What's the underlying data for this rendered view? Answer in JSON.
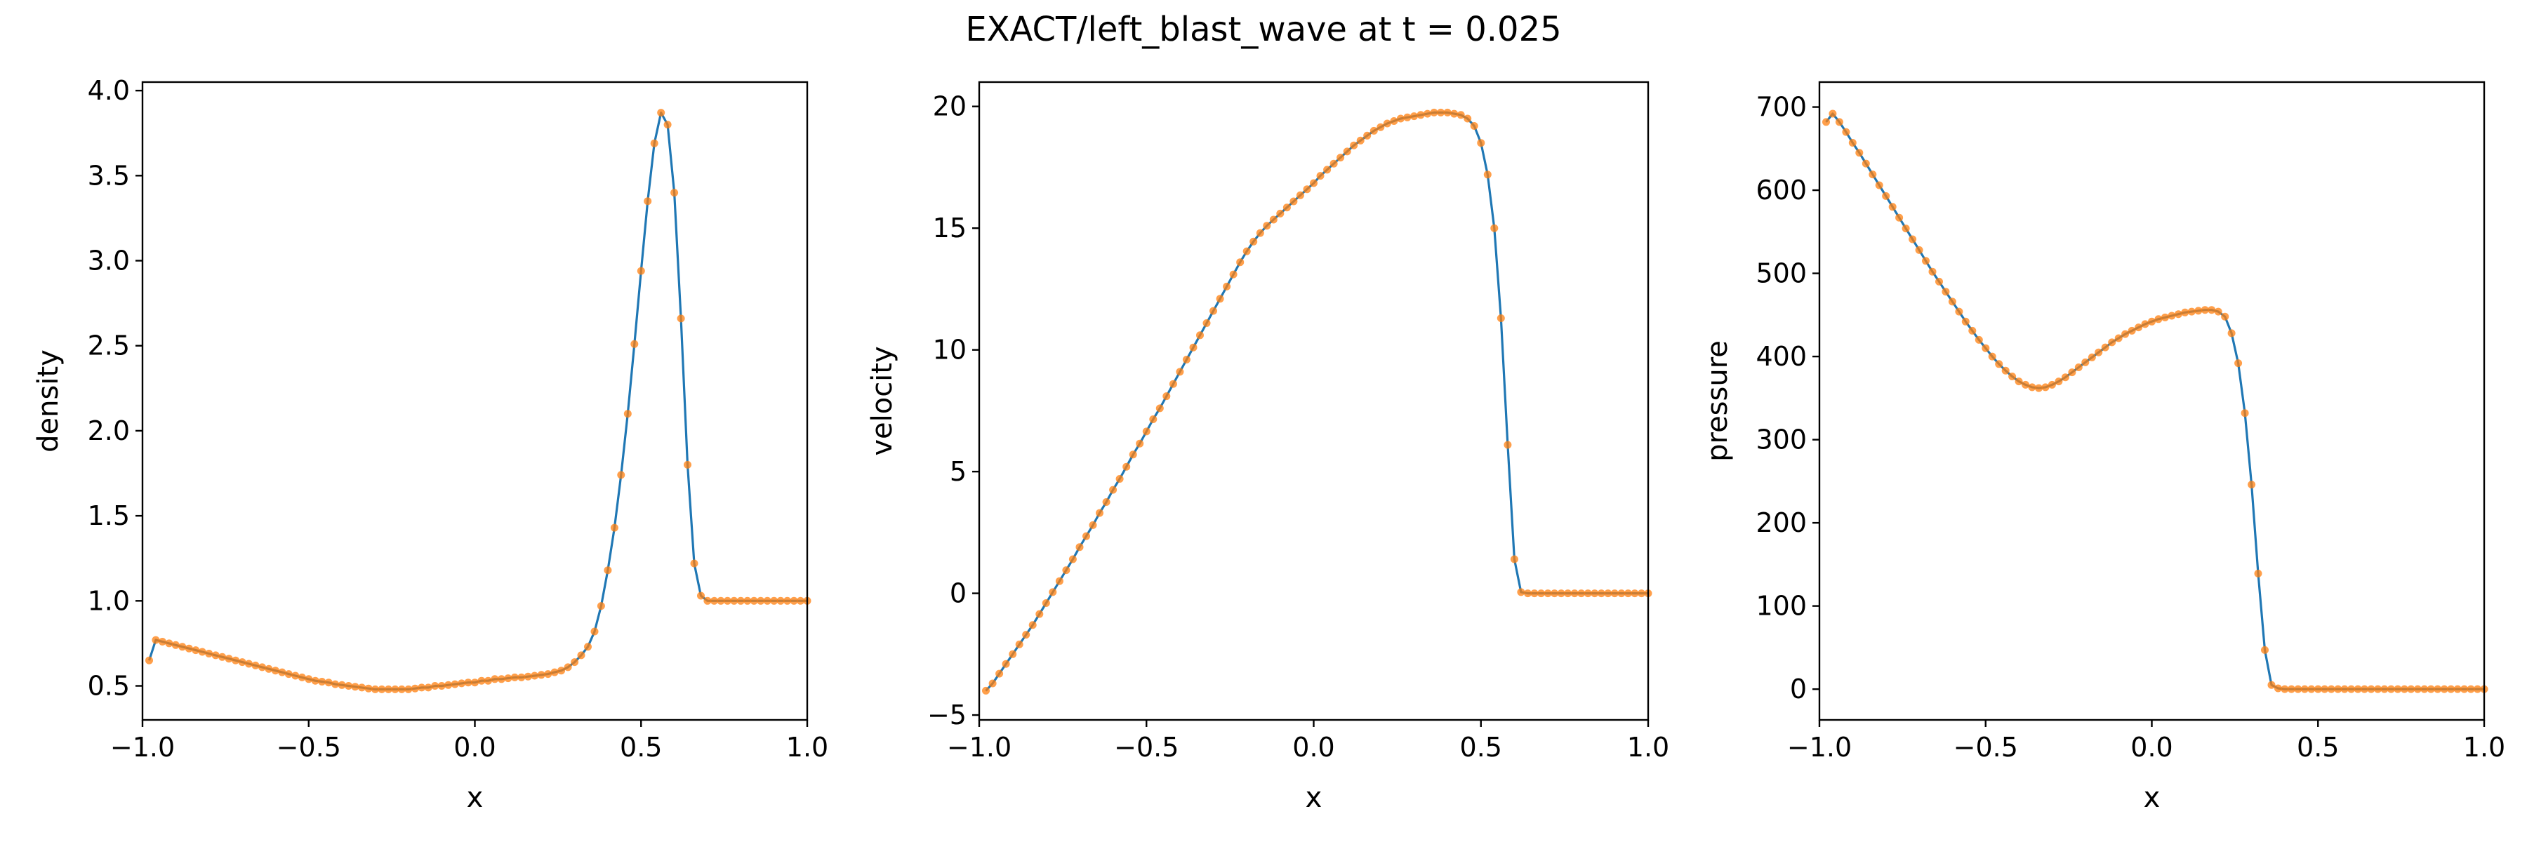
{
  "title": "EXACT/left_blast_wave at t = 0.025",
  "colors": {
    "line": "#1f77b4",
    "markers": "#ff7f0e"
  },
  "chart_data": [
    {
      "type": "line",
      "xlabel": "x",
      "ylabel": "density",
      "xlim": [
        -1.0,
        1.0
      ],
      "ylim": [
        0.3,
        4.05
      ],
      "xticks": [
        -1.0,
        -0.5,
        0.0,
        0.5,
        1.0
      ],
      "xtick_labels": [
        "−1.0",
        "−0.5",
        "0.0",
        "0.5",
        "1.0"
      ],
      "yticks": [
        0.5,
        1.0,
        1.5,
        2.0,
        2.5,
        3.0,
        3.5,
        4.0
      ],
      "ytick_labels": [
        "0.5",
        "1.0",
        "1.5",
        "2.0",
        "2.5",
        "3.0",
        "3.5",
        "4.0"
      ],
      "x": [
        -0.98,
        -0.96,
        -0.94,
        -0.92,
        -0.9,
        -0.88,
        -0.86,
        -0.84,
        -0.82,
        -0.8,
        -0.78,
        -0.76,
        -0.74,
        -0.72,
        -0.7,
        -0.68,
        -0.66,
        -0.64,
        -0.62,
        -0.6,
        -0.58,
        -0.56,
        -0.54,
        -0.52,
        -0.5,
        -0.48,
        -0.46,
        -0.44,
        -0.42,
        -0.4,
        -0.38,
        -0.36,
        -0.34,
        -0.32,
        -0.3,
        -0.28,
        -0.26,
        -0.24,
        -0.22,
        -0.2,
        -0.18,
        -0.16,
        -0.14,
        -0.12,
        -0.1,
        -0.08,
        -0.06,
        -0.04,
        -0.02,
        0.0,
        0.02,
        0.04,
        0.06,
        0.08,
        0.1,
        0.12,
        0.14,
        0.16,
        0.18,
        0.2,
        0.22,
        0.24,
        0.26,
        0.28,
        0.3,
        0.32,
        0.34,
        0.36,
        0.38,
        0.4,
        0.42,
        0.44,
        0.46,
        0.48,
        0.5,
        0.52,
        0.54,
        0.56,
        0.58,
        0.6,
        0.62,
        0.64,
        0.66,
        0.68,
        0.7,
        0.72,
        0.74,
        0.76,
        0.78,
        0.8,
        0.82,
        0.84,
        0.86,
        0.88,
        0.9,
        0.92,
        0.94,
        0.96,
        0.98,
        1.0
      ],
      "y": [
        0.65,
        0.77,
        0.76,
        0.75,
        0.74,
        0.73,
        0.72,
        0.71,
        0.7,
        0.69,
        0.68,
        0.67,
        0.66,
        0.65,
        0.64,
        0.63,
        0.62,
        0.61,
        0.6,
        0.59,
        0.58,
        0.57,
        0.56,
        0.55,
        0.54,
        0.53,
        0.525,
        0.52,
        0.51,
        0.505,
        0.5,
        0.495,
        0.49,
        0.485,
        0.48,
        0.48,
        0.48,
        0.48,
        0.48,
        0.48,
        0.485,
        0.49,
        0.49,
        0.5,
        0.5,
        0.505,
        0.51,
        0.515,
        0.52,
        0.52,
        0.53,
        0.53,
        0.54,
        0.54,
        0.545,
        0.55,
        0.55,
        0.555,
        0.56,
        0.565,
        0.57,
        0.58,
        0.59,
        0.61,
        0.64,
        0.68,
        0.73,
        0.82,
        0.97,
        1.18,
        1.43,
        1.74,
        2.1,
        2.51,
        2.94,
        3.35,
        3.69,
        3.87,
        3.8,
        3.4,
        2.66,
        1.8,
        1.22,
        1.03,
        1.0,
        1.0,
        1.0,
        1.0,
        1.0,
        1.0,
        1.0,
        1.0,
        1.0,
        1.0,
        1.0,
        1.0,
        1.0,
        1.0,
        1.0,
        1.0
      ]
    },
    {
      "type": "line",
      "xlabel": "x",
      "ylabel": "velocity",
      "xlim": [
        -1.0,
        1.0
      ],
      "ylim": [
        -5.2,
        21.0
      ],
      "xticks": [
        -1.0,
        -0.5,
        0.0,
        0.5,
        1.0
      ],
      "xtick_labels": [
        "−1.0",
        "−0.5",
        "0.0",
        "0.5",
        "1.0"
      ],
      "yticks": [
        -5,
        0,
        5,
        10,
        15,
        20
      ],
      "ytick_labels": [
        "−5",
        "0",
        "5",
        "10",
        "15",
        "20"
      ],
      "x": [
        -0.98,
        -0.96,
        -0.94,
        -0.92,
        -0.9,
        -0.88,
        -0.86,
        -0.84,
        -0.82,
        -0.8,
        -0.78,
        -0.76,
        -0.74,
        -0.72,
        -0.7,
        -0.68,
        -0.66,
        -0.64,
        -0.62,
        -0.6,
        -0.58,
        -0.56,
        -0.54,
        -0.52,
        -0.5,
        -0.48,
        -0.46,
        -0.44,
        -0.42,
        -0.4,
        -0.38,
        -0.36,
        -0.34,
        -0.32,
        -0.3,
        -0.28,
        -0.26,
        -0.24,
        -0.22,
        -0.2,
        -0.18,
        -0.16,
        -0.14,
        -0.12,
        -0.1,
        -0.08,
        -0.06,
        -0.04,
        -0.02,
        0.0,
        0.02,
        0.04,
        0.06,
        0.08,
        0.1,
        0.12,
        0.14,
        0.16,
        0.18,
        0.2,
        0.22,
        0.24,
        0.26,
        0.28,
        0.3,
        0.32,
        0.34,
        0.36,
        0.38,
        0.4,
        0.42,
        0.44,
        0.46,
        0.48,
        0.5,
        0.52,
        0.54,
        0.56,
        0.58,
        0.6,
        0.62,
        0.64,
        0.66,
        0.68,
        0.7,
        0.72,
        0.74,
        0.76,
        0.78,
        0.8,
        0.82,
        0.84,
        0.86,
        0.88,
        0.9,
        0.92,
        0.94,
        0.96,
        0.98,
        1.0
      ],
      "y": [
        -4.0,
        -3.7,
        -3.3,
        -2.9,
        -2.5,
        -2.1,
        -1.7,
        -1.3,
        -0.85,
        -0.4,
        0.05,
        0.5,
        0.95,
        1.4,
        1.9,
        2.35,
        2.8,
        3.3,
        3.75,
        4.25,
        4.7,
        5.2,
        5.7,
        6.15,
        6.65,
        7.15,
        7.6,
        8.1,
        8.6,
        9.1,
        9.6,
        10.1,
        10.6,
        11.1,
        11.6,
        12.1,
        12.6,
        13.1,
        13.6,
        14.05,
        14.45,
        14.8,
        15.1,
        15.35,
        15.6,
        15.85,
        16.1,
        16.35,
        16.6,
        16.85,
        17.15,
        17.4,
        17.65,
        17.9,
        18.15,
        18.4,
        18.6,
        18.8,
        19.0,
        19.15,
        19.3,
        19.4,
        19.5,
        19.55,
        19.6,
        19.65,
        19.7,
        19.75,
        19.75,
        19.75,
        19.7,
        19.65,
        19.5,
        19.2,
        18.5,
        17.2,
        15.0,
        11.3,
        6.1,
        1.4,
        0.05,
        0.0,
        0.0,
        0.0,
        0.0,
        0.0,
        0.0,
        0.0,
        0.0,
        0.0,
        0.0,
        0.0,
        0.0,
        0.0,
        0.0,
        0.0,
        0.0,
        0.0,
        0.0,
        0.0
      ]
    },
    {
      "type": "line",
      "xlabel": "x",
      "ylabel": "pressure",
      "xlim": [
        -1.0,
        1.0
      ],
      "ylim": [
        -37,
        730
      ],
      "xticks": [
        -1.0,
        -0.5,
        0.0,
        0.5,
        1.0
      ],
      "xtick_labels": [
        "−1.0",
        "−0.5",
        "0.0",
        "0.5",
        "1.0"
      ],
      "yticks": [
        0,
        100,
        200,
        300,
        400,
        500,
        600,
        700
      ],
      "ytick_labels": [
        "0",
        "100",
        "200",
        "300",
        "400",
        "500",
        "600",
        "700"
      ],
      "x": [
        -0.98,
        -0.96,
        -0.94,
        -0.92,
        -0.9,
        -0.88,
        -0.86,
        -0.84,
        -0.82,
        -0.8,
        -0.78,
        -0.76,
        -0.74,
        -0.72,
        -0.7,
        -0.68,
        -0.66,
        -0.64,
        -0.62,
        -0.6,
        -0.58,
        -0.56,
        -0.54,
        -0.52,
        -0.5,
        -0.48,
        -0.46,
        -0.44,
        -0.42,
        -0.4,
        -0.38,
        -0.36,
        -0.34,
        -0.32,
        -0.3,
        -0.28,
        -0.26,
        -0.24,
        -0.22,
        -0.2,
        -0.18,
        -0.16,
        -0.14,
        -0.12,
        -0.1,
        -0.08,
        -0.06,
        -0.04,
        -0.02,
        0.0,
        0.02,
        0.04,
        0.06,
        0.08,
        0.1,
        0.12,
        0.14,
        0.16,
        0.18,
        0.2,
        0.22,
        0.24,
        0.26,
        0.28,
        0.3,
        0.32,
        0.34,
        0.36,
        0.38,
        0.4,
        0.42,
        0.44,
        0.46,
        0.48,
        0.5,
        0.52,
        0.54,
        0.56,
        0.58,
        0.6,
        0.62,
        0.64,
        0.66,
        0.68,
        0.7,
        0.72,
        0.74,
        0.76,
        0.78,
        0.8,
        0.82,
        0.84,
        0.86,
        0.88,
        0.9,
        0.92,
        0.94,
        0.96,
        0.98,
        1.0
      ],
      "y": [
        682,
        692,
        682,
        670,
        657,
        645,
        632,
        619,
        606,
        593,
        580,
        567,
        554,
        541,
        528,
        515,
        502,
        490,
        478,
        466,
        454,
        442,
        431,
        420,
        410,
        400,
        391,
        383,
        376,
        370,
        366,
        363,
        362,
        363,
        366,
        370,
        375,
        381,
        387,
        393,
        399,
        405,
        411,
        417,
        422,
        427,
        431,
        435,
        439,
        442,
        445,
        447,
        449,
        451,
        453,
        454,
        455,
        456,
        456,
        454,
        448,
        428,
        392,
        332,
        246,
        139,
        47,
        5,
        1,
        0,
        0,
        0,
        0,
        0,
        0,
        0,
        0,
        0,
        0,
        0,
        0,
        0,
        0,
        0,
        0,
        0,
        0,
        0,
        0,
        0,
        0,
        0,
        0,
        0,
        0,
        0,
        0,
        0,
        0,
        0
      ]
    }
  ]
}
